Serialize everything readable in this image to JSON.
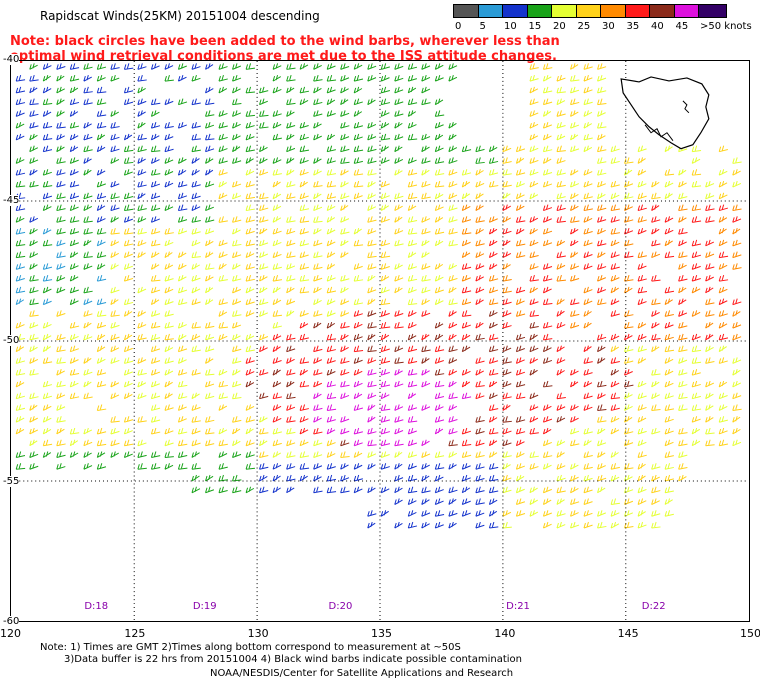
{
  "title": "Rapidscat Winds(25KM) 20151004 descending",
  "note": "Note: black circles have been added to the wind barbs, wherever less than optimal wind retrieval conditions are met due to the ISS attitude changes.",
  "legend": {
    "labels": [
      "0",
      "5",
      "10",
      "15",
      "20",
      "25",
      "30",
      "35",
      "40",
      "45",
      ">50 knots"
    ],
    "colors": [
      "#555555",
      "#2a9bd6",
      "#1433cc",
      "#19a319",
      "#e5ff33",
      "#ffd21a",
      "#ff8a00",
      "#ff1a1a",
      "#8b2a1a",
      "#dd11dd",
      "#330066"
    ]
  },
  "map": {
    "lon_ticks": [
      "120",
      "125",
      "130",
      "135",
      "140",
      "145",
      "150"
    ],
    "lat_ticks": [
      "-40",
      "-45",
      "-50",
      "-55",
      "-60"
    ],
    "grid": true,
    "landmass": "Tasmania",
    "region": {
      "lon": [
        120,
        150
      ],
      "lat": [
        -60,
        -40
      ]
    },
    "day_labels": [
      {
        "text": "D:18",
        "lon": 123.5
      },
      {
        "text": "D:19",
        "lon": 127.9
      },
      {
        "text": "D:20",
        "lon": 133.4
      },
      {
        "text": "D:21",
        "lon": 140.6
      },
      {
        "text": "D:22",
        "lon": 146.1
      }
    ]
  },
  "footer": {
    "line1": "Note: 1) Times are GMT 2)Times along bottom correspond to measurement at ~50S",
    "line2": "3)Data buffer is 22 hrs from 20151004 4) Black wind barbs indicate possible contamination",
    "line3": "NOAA/NESDIS/Center for Satellite Applications and Research"
  }
}
